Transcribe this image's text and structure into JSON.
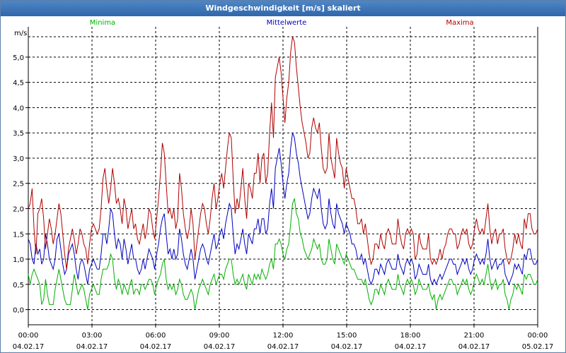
{
  "window": {
    "title": "Windgeschwindigkeit [m/s] skaliert"
  },
  "chart_data": {
    "type": "line",
    "title": "Windgeschwindigkeit [m/s] skaliert",
    "ylabel": "m/s",
    "ylim": [
      -0.3,
      5.6
    ],
    "yticks": [
      "0,0",
      "0,5",
      "1,0",
      "1,5",
      "2,0",
      "2,5",
      "3,0",
      "3,5",
      "4,0",
      "4,5",
      "5,0"
    ],
    "xticks": [
      {
        "time": "00:00",
        "date": "04.02.17"
      },
      {
        "time": "03:00",
        "date": "04.02.17"
      },
      {
        "time": "06:00",
        "date": "04.02.17"
      },
      {
        "time": "09:00",
        "date": "04.02.17"
      },
      {
        "time": "12:00",
        "date": "04.02.17"
      },
      {
        "time": "15:00",
        "date": "04.02.17"
      },
      {
        "time": "18:00",
        "date": "04.02.17"
      },
      {
        "time": "21:00",
        "date": "04.02.17"
      },
      {
        "time": "00:00",
        "date": "05.02.17"
      }
    ],
    "grid": true,
    "legend_position": "top",
    "series": [
      {
        "name": "Minima",
        "color": "#00b000",
        "values": [
          0.7,
          0.5,
          0.7,
          0.8,
          0.7,
          0.6,
          0.5,
          0.1,
          0.2,
          0.6,
          0.3,
          0.1,
          0.1,
          0.1,
          0.4,
          0.6,
          0.8,
          0.6,
          0.4,
          0.2,
          0.1,
          0.1,
          0.1,
          0.4,
          0.7,
          0.5,
          0.3,
          0.4,
          0.5,
          0.4,
          0.2,
          0.0,
          0.3,
          0.4,
          0.5,
          0.4,
          0.3,
          0.3,
          0.6,
          0.8,
          0.8,
          0.8,
          0.9,
          1.1,
          1.0,
          0.6,
          0.4,
          0.6,
          0.5,
          0.3,
          0.5,
          0.4,
          0.3,
          0.5,
          0.6,
          0.3,
          0.4,
          0.4,
          0.3,
          0.5,
          0.5,
          0.4,
          0.5,
          0.6,
          0.6,
          0.5,
          0.3,
          0.5,
          0.6,
          0.7,
          0.9,
          1.0,
          0.6,
          0.4,
          0.5,
          0.4,
          0.5,
          0.3,
          0.4,
          0.6,
          0.5,
          0.3,
          0.2,
          0.2,
          0.3,
          0.4,
          0.3,
          0.0,
          0.2,
          0.4,
          0.5,
          0.6,
          0.5,
          0.4,
          0.3,
          0.5,
          0.6,
          0.7,
          0.5,
          0.6,
          0.7,
          0.7,
          0.6,
          0.8,
          0.9,
          1.0,
          1.0,
          0.7,
          0.5,
          0.6,
          0.5,
          0.6,
          0.7,
          0.5,
          0.4,
          0.7,
          0.6,
          0.5,
          0.7,
          0.6,
          0.7,
          0.6,
          0.8,
          0.7,
          0.6,
          0.7,
          0.9,
          1.0,
          0.8,
          1.3,
          1.3,
          1.4,
          1.3,
          1.1,
          1.0,
          1.2,
          1.3,
          1.7,
          2.1,
          2.2,
          1.9,
          1.8,
          1.5,
          1.4,
          1.2,
          1.1,
          1.0,
          1.1,
          1.2,
          1.4,
          1.3,
          1.2,
          1.3,
          1.0,
          0.9,
          0.9,
          1.0,
          1.4,
          1.2,
          1.0,
          0.9,
          1.3,
          1.2,
          1.1,
          1.0,
          0.9,
          1.1,
          1.0,
          0.9,
          0.8,
          0.8,
          0.7,
          0.6,
          0.6,
          0.6,
          0.5,
          0.6,
          0.4,
          0.2,
          0.1,
          0.2,
          0.4,
          0.4,
          0.3,
          0.5,
          0.4,
          0.3,
          0.5,
          0.6,
          0.5,
          0.4,
          0.4,
          0.4,
          0.7,
          0.5,
          0.4,
          0.3,
          0.5,
          0.6,
          0.5,
          0.6,
          0.5,
          0.3,
          0.4,
          0.6,
          0.5,
          0.4,
          0.4,
          0.4,
          0.5,
          0.3,
          0.2,
          0.3,
          0.0,
          0.2,
          0.3,
          0.2,
          0.3,
          0.4,
          0.5,
          0.6,
          0.6,
          0.5,
          0.5,
          0.3,
          0.4,
          0.5,
          0.6,
          0.5,
          0.6,
          0.4,
          0.3,
          0.4,
          0.6,
          0.7,
          0.6,
          0.5,
          0.6,
          0.5,
          0.7,
          0.9,
          0.6,
          0.4,
          0.5,
          0.6,
          0.4,
          0.5,
          0.5,
          0.6,
          0.3,
          0.2,
          0.0,
          0.2,
          0.3,
          0.5,
          0.4,
          0.5,
          0.4,
          0.3,
          0.7,
          0.6,
          0.7,
          0.7,
          0.6,
          0.5,
          0.5,
          0.6
        ]
      },
      {
        "name": "Mittelwerte",
        "color": "#0000c0",
        "values": [
          1.4,
          1.3,
          1.0,
          0.9,
          1.3,
          1.1,
          1.2,
          0.9,
          1.0,
          1.5,
          1.3,
          1.0,
          0.9,
          0.8,
          1.0,
          1.4,
          1.5,
          1.2,
          0.9,
          0.7,
          0.8,
          1.1,
          1.2,
          1.3,
          1.1,
          0.8,
          0.6,
          0.9,
          1.0,
          0.9,
          0.7,
          0.5,
          0.8,
          0.9,
          1.0,
          0.9,
          0.8,
          0.8,
          1.1,
          1.5,
          1.5,
          1.3,
          1.6,
          2.0,
          1.9,
          1.5,
          1.2,
          1.4,
          1.3,
          1.0,
          1.4,
          1.2,
          0.9,
          1.1,
          1.3,
          1.0,
          1.0,
          0.8,
          0.7,
          0.8,
          1.0,
          0.8,
          1.0,
          1.2,
          1.1,
          1.0,
          0.8,
          1.1,
          1.3,
          1.6,
          1.8,
          1.9,
          1.5,
          1.1,
          1.2,
          1.0,
          1.2,
          1.0,
          1.1,
          1.6,
          1.4,
          1.1,
          0.9,
          0.8,
          1.0,
          1.2,
          1.0,
          0.6,
          0.8,
          1.0,
          1.2,
          1.3,
          1.2,
          1.0,
          0.9,
          1.1,
          1.3,
          1.5,
          1.2,
          1.3,
          1.5,
          1.6,
          1.4,
          1.7,
          1.9,
          2.1,
          2.0,
          1.5,
          1.1,
          1.3,
          1.2,
          1.4,
          1.6,
          1.3,
          1.1,
          1.5,
          1.4,
          1.3,
          1.6,
          1.6,
          1.8,
          1.5,
          1.8,
          1.8,
          1.5,
          1.6,
          2.1,
          2.4,
          2.0,
          2.8,
          3.0,
          3.2,
          2.9,
          2.5,
          2.2,
          2.5,
          2.7,
          3.2,
          3.5,
          3.4,
          3.1,
          2.9,
          2.6,
          2.4,
          2.2,
          2.0,
          1.8,
          1.9,
          2.2,
          2.4,
          2.3,
          2.2,
          2.4,
          2.0,
          1.7,
          1.6,
          1.7,
          2.2,
          1.9,
          1.7,
          1.6,
          2.1,
          1.9,
          1.8,
          1.7,
          1.5,
          1.7,
          1.6,
          1.5,
          1.3,
          1.3,
          1.2,
          1.0,
          1.0,
          1.1,
          0.9,
          1.0,
          0.8,
          0.6,
          0.5,
          0.6,
          0.8,
          0.8,
          0.7,
          0.9,
          0.8,
          0.7,
          0.9,
          1.0,
          0.9,
          0.8,
          0.8,
          0.8,
          1.1,
          0.9,
          0.8,
          0.7,
          0.9,
          1.0,
          0.9,
          1.0,
          0.9,
          0.6,
          0.7,
          0.9,
          0.8,
          0.7,
          0.7,
          0.7,
          0.9,
          0.6,
          0.5,
          0.6,
          0.5,
          0.6,
          0.7,
          0.6,
          0.7,
          0.8,
          0.9,
          1.0,
          1.0,
          0.9,
          0.9,
          0.7,
          0.8,
          0.9,
          1.0,
          0.9,
          1.0,
          0.8,
          0.7,
          0.8,
          1.0,
          1.1,
          1.0,
          0.9,
          1.0,
          0.9,
          1.1,
          1.4,
          1.0,
          0.8,
          0.9,
          1.0,
          0.8,
          0.9,
          0.9,
          1.0,
          0.7,
          0.6,
          0.5,
          0.6,
          0.7,
          0.9,
          0.8,
          0.9,
          0.8,
          0.7,
          1.1,
          1.0,
          1.2,
          1.2,
          1.0,
          0.9,
          0.9,
          1.0
        ]
      },
      {
        "name": "Maxima",
        "color": "#b00000",
        "values": [
          2.0,
          2.1,
          2.4,
          1.6,
          1.1,
          1.9,
          2.0,
          2.2,
          1.8,
          1.2,
          1.5,
          1.8,
          1.6,
          1.3,
          1.5,
          1.8,
          2.1,
          1.9,
          1.5,
          1.1,
          0.8,
          1.2,
          1.4,
          1.6,
          1.4,
          1.1,
          1.3,
          1.6,
          1.5,
          1.3,
          1.2,
          0.9,
          1.3,
          1.6,
          1.7,
          1.6,
          1.5,
          1.6,
          2.0,
          2.6,
          2.8,
          2.4,
          2.1,
          2.4,
          2.8,
          2.5,
          2.1,
          2.2,
          2.0,
          1.7,
          2.2,
          2.0,
          1.6,
          1.8,
          2.0,
          1.6,
          1.7,
          1.4,
          1.3,
          1.5,
          1.7,
          1.4,
          1.6,
          2.0,
          1.9,
          1.6,
          1.4,
          1.8,
          2.2,
          2.7,
          3.3,
          3.1,
          2.5,
          1.9,
          2.0,
          1.8,
          2.0,
          1.6,
          1.8,
          2.7,
          2.4,
          1.9,
          1.6,
          1.4,
          1.6,
          2.0,
          1.7,
          1.0,
          1.3,
          1.6,
          1.9,
          2.1,
          2.0,
          1.7,
          1.5,
          1.8,
          2.2,
          2.5,
          2.0,
          2.2,
          2.5,
          2.7,
          2.4,
          2.8,
          3.2,
          3.5,
          3.4,
          2.6,
          1.9,
          2.2,
          2.0,
          2.4,
          2.8,
          2.2,
          1.8,
          2.5,
          2.4,
          2.2,
          2.7,
          2.7,
          3.1,
          2.5,
          3.0,
          3.1,
          2.5,
          2.7,
          3.5,
          4.1,
          3.4,
          4.6,
          4.8,
          5.0,
          4.7,
          4.2,
          3.7,
          4.2,
          4.5,
          5.1,
          5.4,
          5.3,
          4.8,
          4.4,
          4.0,
          3.7,
          3.5,
          3.3,
          3.0,
          3.1,
          3.6,
          3.8,
          3.6,
          3.5,
          3.7,
          3.2,
          2.8,
          2.7,
          2.8,
          3.5,
          3.0,
          2.8,
          2.6,
          3.4,
          3.1,
          2.9,
          2.8,
          2.4,
          2.8,
          2.6,
          2.4,
          2.2,
          2.2,
          2.0,
          1.7,
          1.7,
          1.8,
          1.5,
          1.7,
          1.4,
          1.1,
          0.9,
          1.0,
          1.3,
          1.3,
          1.2,
          1.5,
          1.3,
          1.2,
          1.5,
          1.6,
          1.5,
          1.3,
          1.3,
          1.3,
          1.8,
          1.5,
          1.3,
          1.2,
          1.5,
          1.6,
          1.5,
          1.6,
          1.5,
          1.0,
          1.1,
          1.5,
          1.3,
          1.2,
          1.2,
          1.2,
          1.5,
          1.0,
          0.9,
          1.0,
          0.9,
          1.0,
          1.2,
          1.0,
          1.2,
          1.3,
          1.5,
          1.6,
          1.6,
          1.5,
          1.5,
          1.2,
          1.3,
          1.5,
          1.6,
          1.5,
          1.6,
          1.3,
          1.2,
          1.3,
          1.6,
          1.8,
          1.6,
          1.5,
          1.6,
          1.5,
          1.8,
          2.1,
          1.6,
          1.3,
          1.5,
          1.6,
          1.3,
          1.5,
          1.5,
          1.6,
          1.2,
          1.0,
          0.9,
          1.0,
          1.2,
          1.5,
          1.3,
          1.5,
          1.3,
          1.2,
          1.8,
          1.6,
          1.9,
          1.9,
          1.6,
          1.5,
          1.5,
          1.6
        ]
      }
    ]
  }
}
